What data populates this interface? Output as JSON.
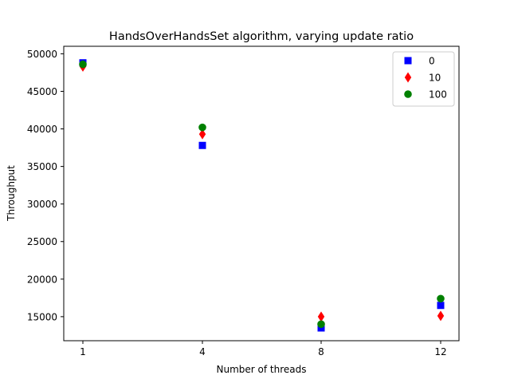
{
  "chart_data": {
    "type": "scatter",
    "title": "HandsOverHandsSet algorithm, varying update ratio",
    "xlabel": "Number of threads",
    "ylabel": "Throughput",
    "categories": [
      "1",
      "4",
      "8",
      "12"
    ],
    "ylim": [
      11800,
      51000
    ],
    "yticks": [
      15000,
      20000,
      25000,
      30000,
      35000,
      40000,
      45000,
      50000
    ],
    "legend_position": "top-right",
    "series": [
      {
        "name": "0",
        "marker": "square",
        "color": "#0000ff",
        "values": [
          48800,
          37800,
          13500,
          16500
        ]
      },
      {
        "name": "10",
        "marker": "diamond",
        "color": "#ff0000",
        "values": [
          48300,
          39300,
          15000,
          15100
        ]
      },
      {
        "name": "100",
        "marker": "circle",
        "color": "#008000",
        "values": [
          48600,
          40200,
          14000,
          17400
        ]
      }
    ]
  }
}
